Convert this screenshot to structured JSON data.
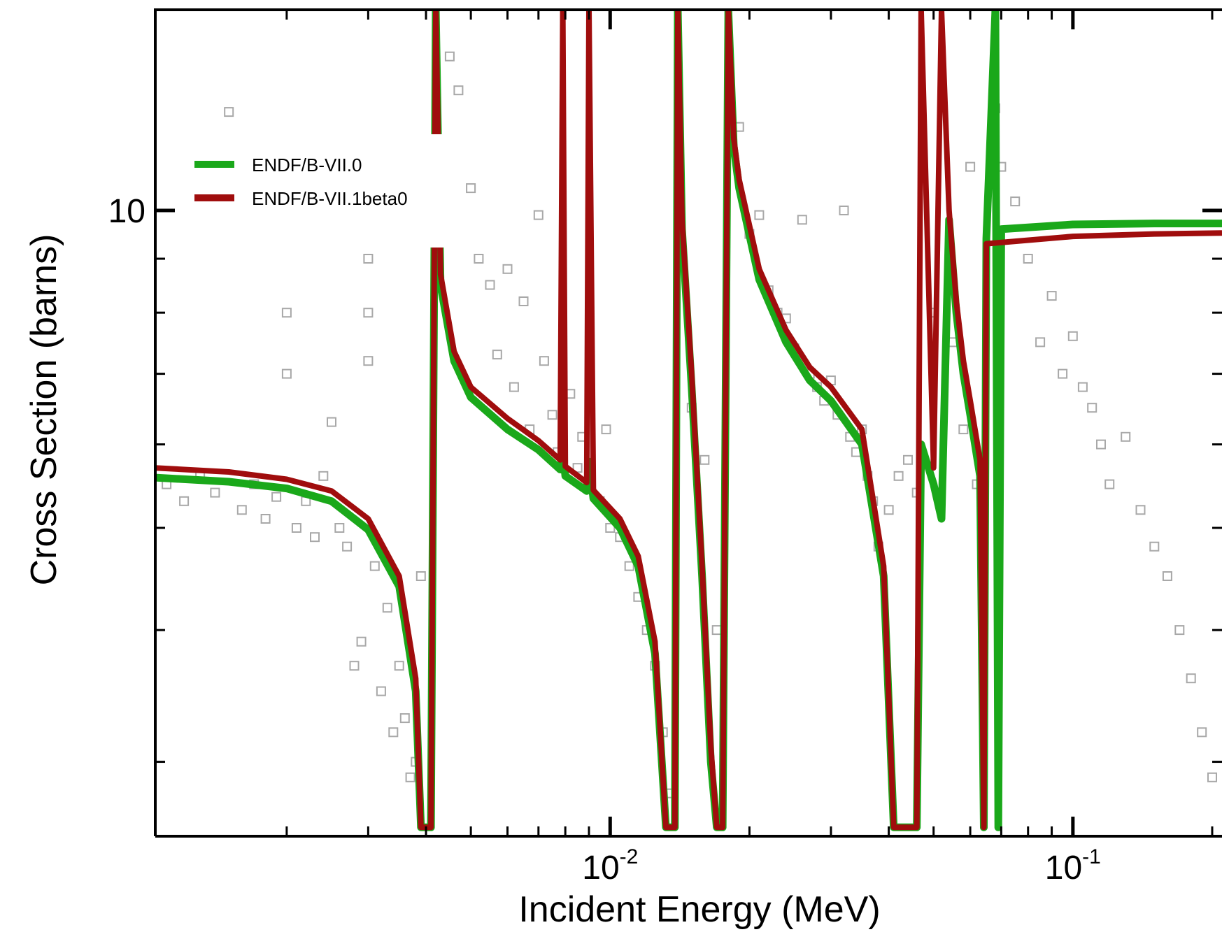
{
  "chart_data": {
    "type": "scatter",
    "x_scale": "log",
    "y_scale": "log",
    "xlabel": "Incident Energy (MeV)",
    "ylabel": "Cross Section (barns)",
    "xlim": [
      0.00104,
      0.21
    ],
    "ylim": [
      2.55,
      15.5
    ],
    "x_ticks": [
      {
        "value": 0.01,
        "base": "10",
        "exp": "-2"
      },
      {
        "value": 0.1,
        "base": "10",
        "exp": "-1"
      }
    ],
    "y_ticks": [
      {
        "value": 10,
        "label": "10"
      }
    ],
    "grid": false,
    "legend": {
      "position": "top-left"
    },
    "colors": {
      "green": "#1aa81a",
      "red": "#a00d0d",
      "markers": "#a8a8a8"
    },
    "series": [
      {
        "name": "ENDF/B-VII.0",
        "color": "#1aa81a",
        "style": "line",
        "points": [
          [
            0.00104,
            5.58
          ],
          [
            0.0015,
            5.53
          ],
          [
            0.002,
            5.45
          ],
          [
            0.0025,
            5.3
          ],
          [
            0.003,
            4.98
          ],
          [
            0.0035,
            4.4
          ],
          [
            0.0038,
            3.5
          ],
          [
            0.0039,
            2.6
          ],
          [
            0.0041,
            2.6
          ],
          [
            0.0042,
            15.5
          ],
          [
            0.0043,
            8.5
          ],
          [
            0.0046,
            7.2
          ],
          [
            0.005,
            6.65
          ],
          [
            0.006,
            6.2
          ],
          [
            0.007,
            5.93
          ],
          [
            0.0078,
            5.68
          ],
          [
            0.0079,
            5.9
          ],
          [
            0.008,
            5.6
          ],
          [
            0.0089,
            5.42
          ],
          [
            0.009,
            5.78
          ],
          [
            0.0092,
            5.33
          ],
          [
            0.0105,
            5.0
          ],
          [
            0.0115,
            4.6
          ],
          [
            0.0125,
            3.8
          ],
          [
            0.0132,
            2.6
          ],
          [
            0.0138,
            2.6
          ],
          [
            0.014,
            15.5
          ],
          [
            0.0143,
            9.6
          ],
          [
            0.015,
            6.8
          ],
          [
            0.0158,
            4.5
          ],
          [
            0.0165,
            3.0
          ],
          [
            0.017,
            2.6
          ],
          [
            0.0175,
            2.6
          ],
          [
            0.018,
            15.5
          ],
          [
            0.0185,
            11.5
          ],
          [
            0.019,
            10.5
          ],
          [
            0.021,
            8.6
          ],
          [
            0.024,
            7.5
          ],
          [
            0.027,
            6.9
          ],
          [
            0.03,
            6.6
          ],
          [
            0.035,
            6.0
          ],
          [
            0.039,
            4.5
          ],
          [
            0.041,
            2.6
          ],
          [
            0.046,
            2.6
          ],
          [
            0.047,
            6.0
          ],
          [
            0.05,
            5.5
          ],
          [
            0.052,
            5.1
          ],
          [
            0.054,
            9.8
          ],
          [
            0.056,
            8.0
          ],
          [
            0.058,
            7.0
          ],
          [
            0.06,
            6.4
          ],
          [
            0.063,
            5.6
          ],
          [
            0.0642,
            2.6
          ],
          [
            0.065,
            9.4
          ],
          [
            0.068,
            15.5
          ],
          [
            0.069,
            2.6
          ],
          [
            0.07,
            9.6
          ],
          [
            0.1,
            9.7
          ],
          [
            0.15,
            9.72
          ],
          [
            0.21,
            9.72
          ]
        ]
      },
      {
        "name": "ENDF/B-VII.1beta0",
        "color": "#a00d0d",
        "style": "line",
        "points": [
          [
            0.00104,
            5.7
          ],
          [
            0.0015,
            5.65
          ],
          [
            0.002,
            5.56
          ],
          [
            0.0025,
            5.42
          ],
          [
            0.003,
            5.1
          ],
          [
            0.0035,
            4.5
          ],
          [
            0.0038,
            3.6
          ],
          [
            0.0039,
            2.6
          ],
          [
            0.0041,
            2.6
          ],
          [
            0.0042,
            15.5
          ],
          [
            0.0043,
            8.7
          ],
          [
            0.0046,
            7.35
          ],
          [
            0.005,
            6.8
          ],
          [
            0.006,
            6.35
          ],
          [
            0.007,
            6.05
          ],
          [
            0.0078,
            5.8
          ],
          [
            0.0079,
            15.5
          ],
          [
            0.008,
            5.72
          ],
          [
            0.0089,
            5.52
          ],
          [
            0.009,
            15.5
          ],
          [
            0.0092,
            5.43
          ],
          [
            0.0105,
            5.1
          ],
          [
            0.0115,
            4.7
          ],
          [
            0.0125,
            3.9
          ],
          [
            0.0132,
            2.6
          ],
          [
            0.0138,
            2.6
          ],
          [
            0.014,
            15.5
          ],
          [
            0.0143,
            9.8
          ],
          [
            0.015,
            7.0
          ],
          [
            0.0158,
            4.6
          ],
          [
            0.0165,
            3.1
          ],
          [
            0.017,
            2.6
          ],
          [
            0.0175,
            2.6
          ],
          [
            0.018,
            15.5
          ],
          [
            0.0185,
            11.7
          ],
          [
            0.019,
            10.7
          ],
          [
            0.021,
            8.8
          ],
          [
            0.024,
            7.7
          ],
          [
            0.027,
            7.1
          ],
          [
            0.03,
            6.8
          ],
          [
            0.035,
            6.2
          ],
          [
            0.039,
            4.6
          ],
          [
            0.041,
            2.6
          ],
          [
            0.046,
            2.6
          ],
          [
            0.047,
            15.5
          ],
          [
            0.05,
            5.7
          ],
          [
            0.052,
            15.5
          ],
          [
            0.054,
            10.0
          ],
          [
            0.056,
            8.2
          ],
          [
            0.058,
            7.2
          ],
          [
            0.06,
            6.6
          ],
          [
            0.063,
            5.8
          ],
          [
            0.0642,
            2.6
          ],
          [
            0.065,
            9.3
          ],
          [
            0.1,
            9.45
          ],
          [
            0.15,
            9.5
          ],
          [
            0.21,
            9.52
          ]
        ]
      },
      {
        "name": "",
        "color": "#a8a8a8",
        "style": "open-square-markers",
        "points": [
          [
            0.0011,
            5.5
          ],
          [
            0.0012,
            5.3
          ],
          [
            0.0013,
            5.6
          ],
          [
            0.0014,
            5.4
          ],
          [
            0.0015,
            12.4
          ],
          [
            0.0016,
            5.2
          ],
          [
            0.0017,
            5.5
          ],
          [
            0.0018,
            5.1
          ],
          [
            0.0019,
            5.35
          ],
          [
            0.002,
            11.0
          ],
          [
            0.002,
            9.5
          ],
          [
            0.002,
            8.0
          ],
          [
            0.002,
            7.0
          ],
          [
            0.0021,
            5.0
          ],
          [
            0.0022,
            5.3
          ],
          [
            0.0023,
            4.9
          ],
          [
            0.0024,
            5.6
          ],
          [
            0.0025,
            6.3
          ],
          [
            0.0026,
            5.0
          ],
          [
            0.0027,
            4.8
          ],
          [
            0.0028,
            3.7
          ],
          [
            0.0029,
            3.9
          ],
          [
            0.003,
            9.0
          ],
          [
            0.003,
            8.0
          ],
          [
            0.003,
            7.2
          ],
          [
            0.0031,
            4.6
          ],
          [
            0.0032,
            3.5
          ],
          [
            0.0033,
            4.2
          ],
          [
            0.0034,
            3.2
          ],
          [
            0.0035,
            3.7
          ],
          [
            0.0036,
            3.3
          ],
          [
            0.0037,
            2.9
          ],
          [
            0.0038,
            3.0
          ],
          [
            0.0039,
            4.5
          ],
          [
            0.0045,
            14.0
          ],
          [
            0.0047,
            13.0
          ],
          [
            0.005,
            10.5
          ],
          [
            0.0052,
            9.0
          ],
          [
            0.0055,
            8.5
          ],
          [
            0.0057,
            7.3
          ],
          [
            0.006,
            8.8
          ],
          [
            0.0062,
            6.8
          ],
          [
            0.0065,
            8.2
          ],
          [
            0.0067,
            6.2
          ],
          [
            0.007,
            9.9
          ],
          [
            0.0072,
            7.2
          ],
          [
            0.0075,
            6.4
          ],
          [
            0.0077,
            5.9
          ],
          [
            0.0082,
            6.7
          ],
          [
            0.0085,
            5.7
          ],
          [
            0.0087,
            6.1
          ],
          [
            0.0095,
            5.3
          ],
          [
            0.0098,
            6.2
          ],
          [
            0.01,
            5.0
          ],
          [
            0.0105,
            4.9
          ],
          [
            0.011,
            4.6
          ],
          [
            0.0115,
            4.3
          ],
          [
            0.012,
            4.0
          ],
          [
            0.0125,
            3.7
          ],
          [
            0.013,
            3.2
          ],
          [
            0.0135,
            2.8
          ],
          [
            0.015,
            6.5
          ],
          [
            0.016,
            5.8
          ],
          [
            0.017,
            4.0
          ],
          [
            0.019,
            12.0
          ],
          [
            0.02,
            9.5
          ],
          [
            0.021,
            9.9
          ],
          [
            0.022,
            8.4
          ],
          [
            0.023,
            8.0
          ],
          [
            0.024,
            7.9
          ],
          [
            0.025,
            7.4
          ],
          [
            0.026,
            9.8
          ],
          [
            0.027,
            7.0
          ],
          [
            0.028,
            6.8
          ],
          [
            0.029,
            6.6
          ],
          [
            0.03,
            6.9
          ],
          [
            0.031,
            6.4
          ],
          [
            0.032,
            10.0
          ],
          [
            0.033,
            6.1
          ],
          [
            0.034,
            5.9
          ],
          [
            0.035,
            6.2
          ],
          [
            0.036,
            5.6
          ],
          [
            0.037,
            5.3
          ],
          [
            0.038,
            4.8
          ],
          [
            0.04,
            5.2
          ],
          [
            0.042,
            5.6
          ],
          [
            0.044,
            5.8
          ],
          [
            0.046,
            5.4
          ],
          [
            0.05,
            8.0
          ],
          [
            0.055,
            7.5
          ],
          [
            0.058,
            6.2
          ],
          [
            0.06,
            11.0
          ],
          [
            0.062,
            5.5
          ],
          [
            0.068,
            12.5
          ],
          [
            0.07,
            11.0
          ],
          [
            0.075,
            10.2
          ],
          [
            0.08,
            9.0
          ],
          [
            0.085,
            7.5
          ],
          [
            0.09,
            8.3
          ],
          [
            0.095,
            7.0
          ],
          [
            0.1,
            7.6
          ],
          [
            0.105,
            6.8
          ],
          [
            0.11,
            6.5
          ],
          [
            0.115,
            6.0
          ],
          [
            0.12,
            5.5
          ],
          [
            0.13,
            6.1
          ],
          [
            0.14,
            5.2
          ],
          [
            0.15,
            4.8
          ],
          [
            0.16,
            4.5
          ],
          [
            0.17,
            4.0
          ],
          [
            0.18,
            3.6
          ],
          [
            0.19,
            3.2
          ],
          [
            0.2,
            2.9
          ]
        ]
      }
    ]
  }
}
